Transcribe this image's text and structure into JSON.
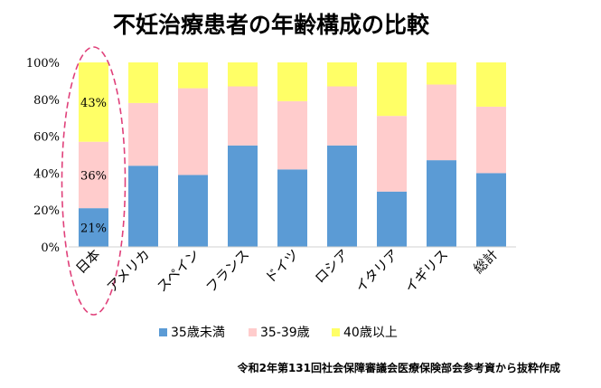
{
  "chart_data": {
    "type": "bar",
    "stacked": true,
    "title": "不妊治療患者の年齢構成の比較",
    "categories": [
      "日本",
      "アメリカ",
      "スペイン",
      "フランス",
      "ドイツ",
      "ロシア",
      "イタリア",
      "イギリス",
      "総計"
    ],
    "series": [
      {
        "name": "35歳未満",
        "color": "#5b9bd5",
        "values": [
          21,
          44,
          39,
          55,
          42,
          55,
          30,
          47,
          40
        ]
      },
      {
        "name": "35-39歳",
        "color": "#ffcccc",
        "values": [
          36,
          34,
          47,
          32,
          37,
          32,
          41,
          41,
          36
        ]
      },
      {
        "name": "40歳以上",
        "color": "#ffff66",
        "values": [
          43,
          22,
          14,
          13,
          21,
          13,
          29,
          12,
          24
        ]
      }
    ],
    "data_labels": {
      "category": "日本",
      "values": [
        "21%",
        "36%",
        "43%"
      ]
    },
    "ylim": [
      0,
      100
    ],
    "yticks": [
      "0%",
      "20%",
      "40%",
      "60%",
      "80%",
      "100%"
    ],
    "grid": false,
    "legend_position": "bottom",
    "highlight": {
      "category": "日本",
      "style": "dashed-ellipse",
      "color": "#e0407a"
    },
    "source_note": "令和2年第131回社会保障審議会医療保険部会参考資から抜粋作成"
  }
}
